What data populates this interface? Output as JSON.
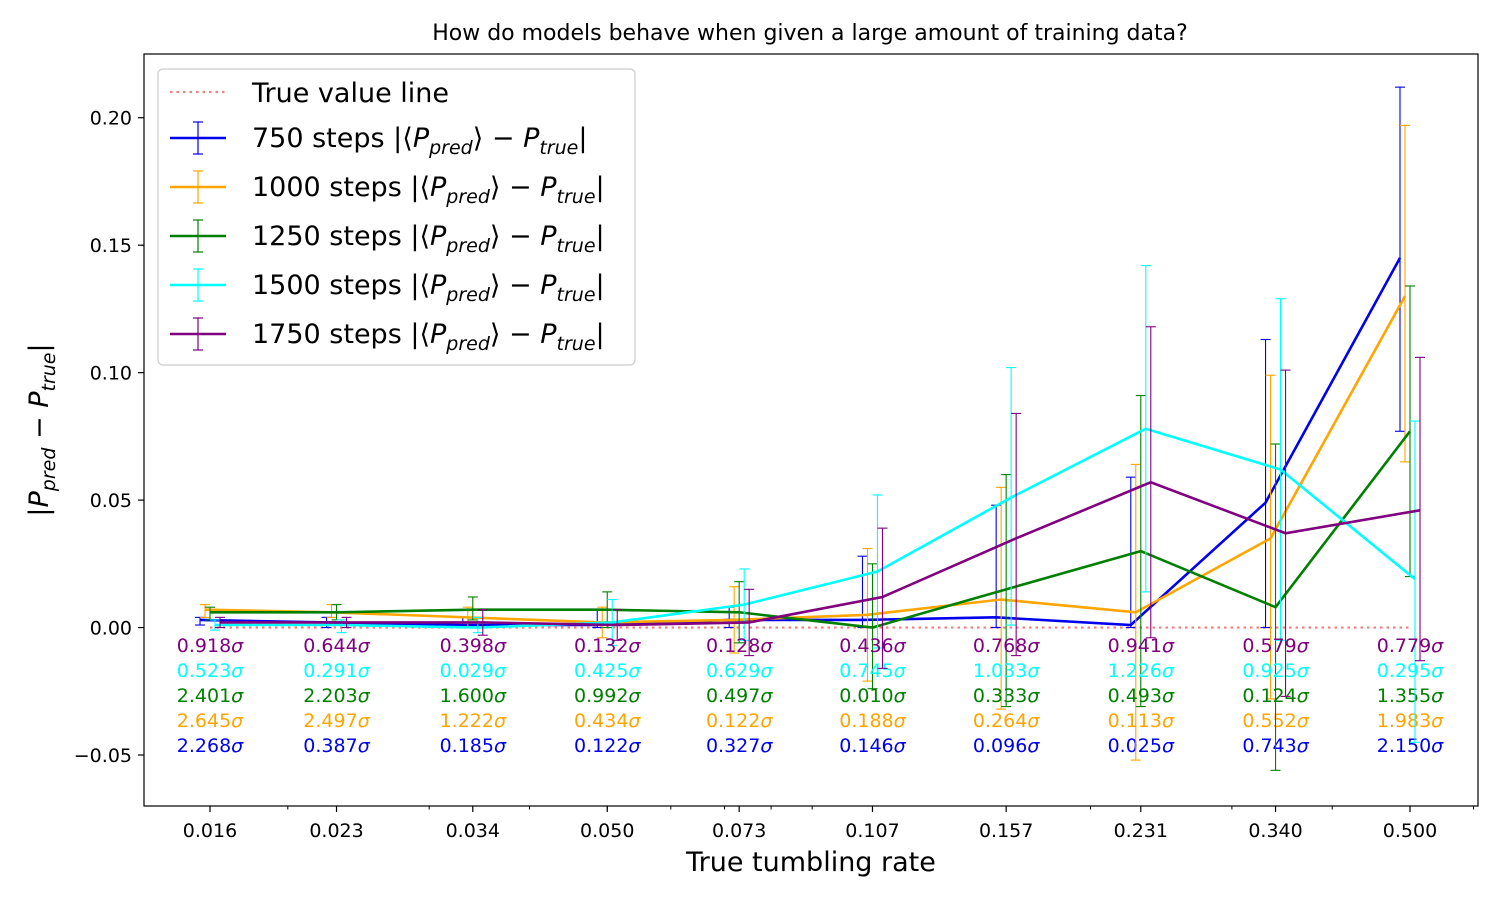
{
  "chart_data": {
    "type": "line",
    "title": "How do models behave when given a large amount of training data?",
    "xlabel": "True tumbling rate",
    "ylabel": "|P_pred − P_true|",
    "x_scale": "log",
    "categories": [
      "0.016",
      "0.023",
      "0.034",
      "0.050",
      "0.073",
      "0.107",
      "0.157",
      "0.231",
      "0.340",
      "0.500"
    ],
    "x": [
      0.016,
      0.023,
      0.034,
      0.05,
      0.073,
      0.107,
      0.157,
      0.231,
      0.34,
      0.5
    ],
    "ylim": [
      -0.07,
      0.225
    ],
    "yticks": [
      -0.05,
      0.0,
      0.05,
      0.1,
      0.15,
      0.2
    ],
    "ytick_labels": [
      "−0.05",
      "0.00",
      "0.05",
      "0.10",
      "0.15",
      "0.20"
    ],
    "legend_position": "top-left",
    "reference_line": {
      "name": "True value line",
      "y": 0.0,
      "color": "#f87c7c"
    },
    "series": [
      {
        "name": "750 steps",
        "color": "#0000ee",
        "values": [
          0.003,
          0.002,
          0.001,
          0.001,
          0.003,
          0.003,
          0.004,
          0.001,
          0.049,
          0.145
        ],
        "err_low": [
          0.001,
          0.0,
          0.0,
          0.0,
          0.0,
          0.0,
          0.0,
          0.0,
          0.0,
          0.077
        ],
        "err_high": [
          0.004,
          0.004,
          0.004,
          0.007,
          0.008,
          0.028,
          0.048,
          0.059,
          0.113,
          0.212
        ],
        "sigma_labels": [
          "2.268σ",
          "0.387σ",
          "0.185σ",
          "0.122σ",
          "0.327σ",
          "0.146σ",
          "0.096σ",
          "0.025σ",
          "0.743σ",
          "2.150σ"
        ]
      },
      {
        "name": "1000 steps",
        "color": "#ffa500",
        "values": [
          0.007,
          0.006,
          0.004,
          0.002,
          0.003,
          0.005,
          0.011,
          0.006,
          0.035,
          0.13
        ],
        "err_low": [
          0.004,
          0.004,
          0.0,
          -0.004,
          -0.01,
          -0.021,
          -0.032,
          -0.052,
          -0.028,
          0.065
        ],
        "err_high": [
          0.009,
          0.009,
          0.008,
          0.008,
          0.016,
          0.031,
          0.055,
          0.064,
          0.099,
          0.197
        ],
        "sigma_labels": [
          "2.645σ",
          "2.497σ",
          "1.222σ",
          "0.434σ",
          "0.122σ",
          "0.188σ",
          "0.264σ",
          "0.113σ",
          "0.552σ",
          "1.983σ"
        ]
      },
      {
        "name": "1250 steps",
        "color": "#008000",
        "values": [
          0.006,
          0.006,
          0.007,
          0.007,
          0.006,
          0.0,
          0.015,
          0.03,
          0.008,
          0.077
        ],
        "err_low": [
          0.003,
          0.003,
          0.003,
          0.0,
          -0.006,
          -0.024,
          -0.031,
          -0.031,
          -0.056,
          0.02
        ],
        "err_high": [
          0.008,
          0.009,
          0.012,
          0.014,
          0.018,
          0.025,
          0.06,
          0.091,
          0.072,
          0.134
        ],
        "sigma_labels": [
          "2.401σ",
          "2.203σ",
          "1.600σ",
          "0.992σ",
          "0.497σ",
          "0.010σ",
          "0.333σ",
          "0.493σ",
          "0.124σ",
          "1.355σ"
        ]
      },
      {
        "name": "1500 steps",
        "color": "#00ffff",
        "values": [
          0.001,
          0.001,
          0.0,
          0.002,
          0.009,
          0.022,
          0.051,
          0.078,
          0.062,
          0.019
        ],
        "err_low": [
          -0.001,
          -0.002,
          -0.002,
          -0.007,
          -0.005,
          -0.008,
          0.001,
          0.014,
          -0.005,
          -0.045
        ],
        "err_high": [
          0.003,
          0.003,
          0.004,
          0.011,
          0.023,
          0.052,
          0.102,
          0.142,
          0.129,
          0.081
        ],
        "sigma_labels": [
          "0.523σ",
          "0.291σ",
          "0.029σ",
          "0.425σ",
          "0.629σ",
          "0.745σ",
          "1.033σ",
          "1.226σ",
          "0.925σ",
          "0.295σ"
        ]
      },
      {
        "name": "1750 steps",
        "color": "#800080",
        "values": [
          0.002,
          0.002,
          0.002,
          0.001,
          0.002,
          0.012,
          0.035,
          0.057,
          0.037,
          0.046
        ],
        "err_low": [
          0.0,
          0.0,
          -0.003,
          -0.005,
          -0.011,
          -0.016,
          -0.011,
          -0.004,
          -0.027,
          -0.013
        ],
        "err_high": [
          0.004,
          0.004,
          0.007,
          0.007,
          0.015,
          0.039,
          0.084,
          0.118,
          0.101,
          0.106
        ],
        "sigma_labels": [
          "0.918σ",
          "0.644σ",
          "0.398σ",
          "0.132σ",
          "0.128σ",
          "0.436σ",
          "0.768σ",
          "0.941σ",
          "0.579σ",
          "0.779σ"
        ]
      }
    ]
  },
  "legend_suffix": "|⟨P_pred⟩ − P_true|"
}
